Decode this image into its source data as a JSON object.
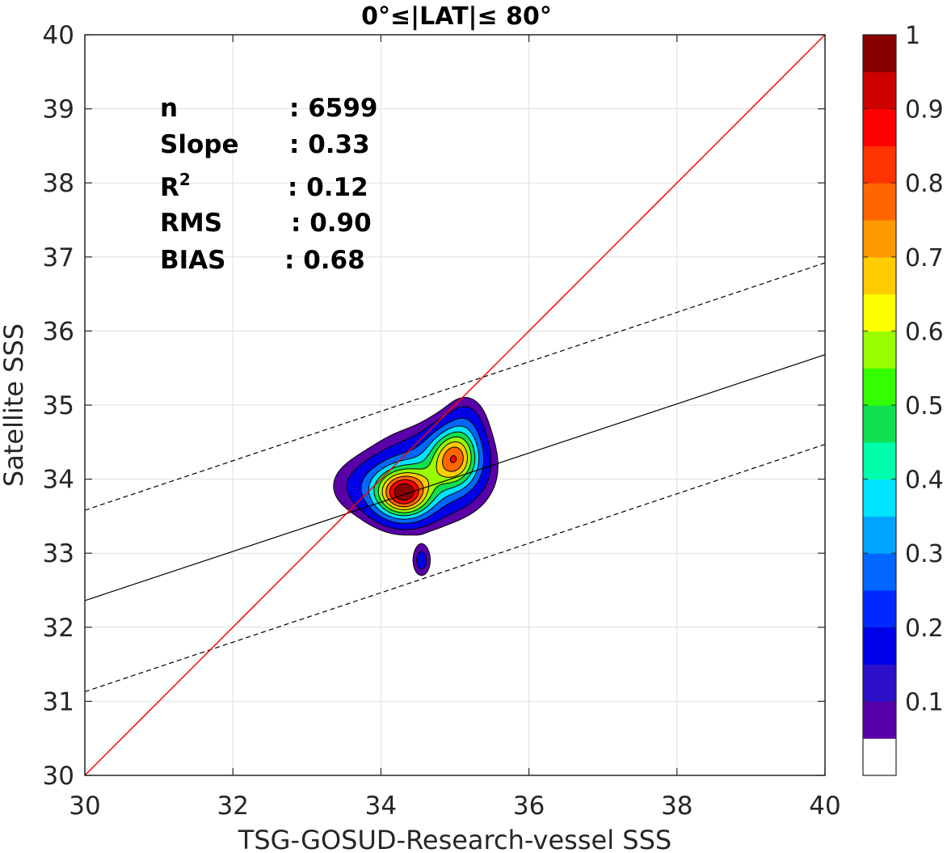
{
  "chart_data": {
    "type": "contour-scatter",
    "title": "0°≤|LAT|≤ 80°",
    "xlabel": "TSG-GOSUD-Research-vessel SSS",
    "ylabel": "Satellite SSS",
    "xlim": [
      30,
      40
    ],
    "ylim": [
      30,
      40
    ],
    "xticks": [
      30,
      32,
      34,
      36,
      38,
      40
    ],
    "yticks": [
      30,
      31,
      32,
      33,
      34,
      35,
      36,
      37,
      38,
      39,
      40
    ],
    "grid": true,
    "stats": [
      {
        "label": "n",
        "value": ": 6599"
      },
      {
        "label": "Slope",
        "value": ": 0.33"
      },
      {
        "label": "R",
        "sup": "2",
        "value": ": 0.12"
      },
      {
        "label": "RMS",
        "value": ": 0.90"
      },
      {
        "label": "BIAS",
        "value": ": 0.68"
      }
    ],
    "identity_line": {
      "x": [
        30,
        40
      ],
      "y": [
        30,
        40
      ],
      "color": "#ff0000"
    },
    "fit_line": {
      "x": [
        30,
        40
      ],
      "y": [
        32.36,
        35.68
      ],
      "color": "#000000"
    },
    "fit_upper": {
      "x": [
        30,
        40
      ],
      "y": [
        33.58,
        36.92
      ],
      "style": "dashed"
    },
    "fit_lower": {
      "x": [
        30,
        40
      ],
      "y": [
        31.13,
        34.47
      ],
      "style": "dashed"
    },
    "density_peak": {
      "x": 34.3,
      "y": 33.8,
      "value": 1.0
    },
    "secondary_peak": {
      "x": 35.0,
      "y": 34.3,
      "value": 0.85
    },
    "contour_levels": [
      0.05,
      0.1,
      0.2,
      0.3,
      0.4,
      0.5,
      0.6,
      0.7,
      0.8,
      0.9
    ],
    "colorbar": {
      "ticks": [
        "0.1",
        "0.2",
        "0.3",
        "0.4",
        "0.5",
        "0.6",
        "0.7",
        "0.8",
        "0.9",
        "1"
      ],
      "tick_values": [
        0.1,
        0.2,
        0.3,
        0.4,
        0.5,
        0.6,
        0.7,
        0.8,
        0.9,
        1.0
      ],
      "colors": [
        "#ffffff",
        "#5a00a8",
        "#2d10c8",
        "#0000e8",
        "#0028ff",
        "#0066ff",
        "#00a4ff",
        "#00e4ff",
        "#00ffaa",
        "#10e050",
        "#33ff00",
        "#99ff00",
        "#ffff00",
        "#ffcc00",
        "#ff9900",
        "#ff6600",
        "#ff3300",
        "#ff0000",
        "#cc0000",
        "#880000"
      ]
    }
  }
}
